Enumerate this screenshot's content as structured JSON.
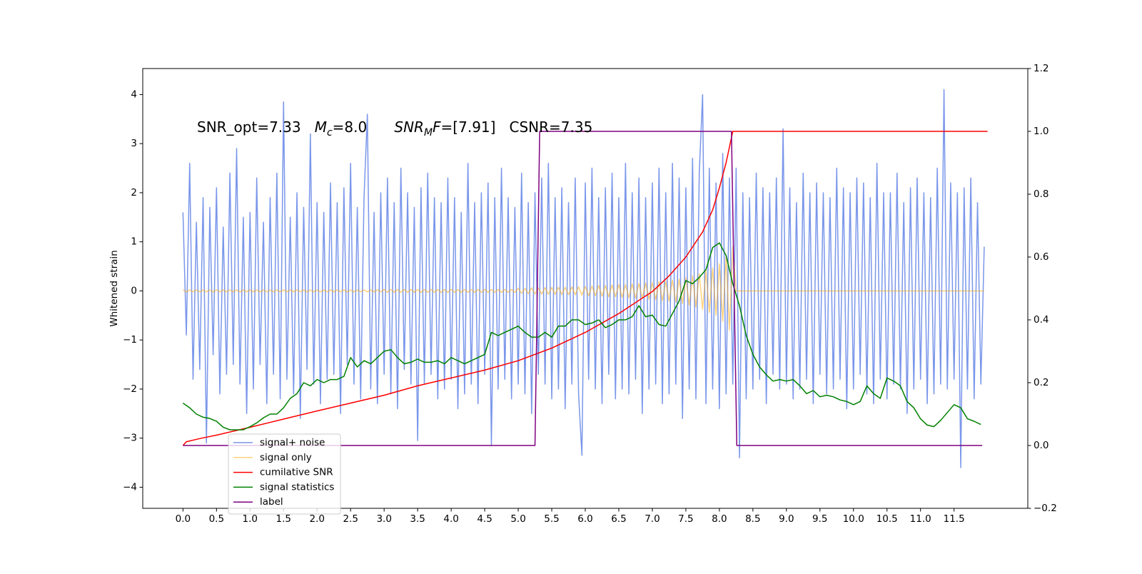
{
  "chart_data": {
    "type": "line",
    "annotation": [
      {
        "text": "SNR_opt=7.33   "
      },
      {
        "text": "M",
        "italic": true
      },
      {
        "text": "c",
        "italic": true,
        "subscript": true
      },
      {
        "text": "=8.0      "
      },
      {
        "text": "SNR",
        "italic": true
      },
      {
        "text": "M",
        "italic": true,
        "subscript": true
      },
      {
        "text": "F",
        "italic": true
      },
      {
        "text": "=[7.91]   CSNR=7.35"
      }
    ],
    "y_label": "Whitened strain",
    "legend": "lower left",
    "xlim": [
      -0.6,
      12.6
    ],
    "ylim": [
      -4.43,
      4.53
    ],
    "y2lim": [
      -0.2,
      1.2
    ],
    "xticks": [
      {
        "value": 0,
        "label": "0.0"
      },
      0.5,
      {
        "value": 1,
        "label": "1.0"
      },
      1.5,
      {
        "value": 2,
        "label": "2.0"
      },
      2.5,
      {
        "value": 3,
        "label": "3.0"
      },
      3.5,
      {
        "value": 4,
        "label": "4.0"
      },
      4.5,
      {
        "value": 5,
        "label": "5.0"
      },
      5.5,
      {
        "value": 6,
        "label": "6.0"
      },
      6.5,
      {
        "value": 7,
        "label": "7.0"
      },
      7.5,
      {
        "value": 8,
        "label": "8.0"
      },
      8.5,
      {
        "value": 9,
        "label": "9.0"
      },
      9.5,
      {
        "value": 10,
        "label": "10.0"
      },
      10.5,
      {
        "value": 11,
        "label": "11.0"
      },
      11.5
    ],
    "yticks": [
      {
        "value": -4,
        "label": "−4"
      },
      {
        "value": -3,
        "label": "−3"
      },
      {
        "value": -2,
        "label": "−2"
      },
      {
        "value": -1,
        "label": "−1"
      },
      0,
      1,
      2,
      3,
      4
    ],
    "y2ticks": [
      {
        "value": -0.2,
        "label": "−0.2"
      },
      {
        "value": 0,
        "label": "0.0"
      },
      0.2,
      0.4,
      0.6,
      0.8,
      {
        "value": 1,
        "label": "1.0"
      },
      1.2
    ],
    "x": [
      0,
      0.05,
      0.1,
      0.15,
      0.2,
      0.25,
      0.3,
      0.35,
      0.4,
      0.45,
      0.5,
      0.55,
      0.6,
      0.65,
      0.7,
      0.75,
      0.8,
      0.85,
      0.9,
      0.95,
      1,
      1.05,
      1.1,
      1.15,
      1.2,
      1.25,
      1.3,
      1.35,
      1.4,
      1.45,
      1.5,
      1.55,
      1.6,
      1.65,
      1.7,
      1.75,
      1.8,
      1.85,
      1.9,
      1.95,
      2,
      2.05,
      2.1,
      2.15,
      2.2,
      2.25,
      2.3,
      2.35,
      2.4,
      2.45,
      2.5,
      2.55,
      2.6,
      2.65,
      2.7,
      2.75,
      2.8,
      2.85,
      2.9,
      2.95,
      3,
      3.05,
      3.1,
      3.15,
      3.2,
      3.25,
      3.3,
      3.35,
      3.4,
      3.45,
      3.5,
      3.55,
      3.6,
      3.65,
      3.7,
      3.75,
      3.8,
      3.85,
      3.9,
      3.95,
      4,
      4.05,
      4.1,
      4.15,
      4.2,
      4.25,
      4.3,
      4.35,
      4.4,
      4.45,
      4.5,
      4.55,
      4.6,
      4.65,
      4.7,
      4.75,
      4.8,
      4.85,
      4.9,
      4.95,
      5,
      5.05,
      5.1,
      5.15,
      5.2,
      5.25,
      5.3,
      5.35,
      5.4,
      5.45,
      5.5,
      5.55,
      5.6,
      5.65,
      5.7,
      5.75,
      5.8,
      5.85,
      5.9,
      5.95,
      6,
      6.05,
      6.1,
      6.15,
      6.2,
      6.25,
      6.3,
      6.35,
      6.4,
      6.45,
      6.5,
      6.55,
      6.6,
      6.65,
      6.7,
      6.75,
      6.8,
      6.85,
      6.9,
      6.95,
      7,
      7.05,
      7.1,
      7.15,
      7.2,
      7.25,
      7.3,
      7.35,
      7.4,
      7.45,
      7.5,
      7.55,
      7.6,
      7.65,
      7.7,
      7.75,
      7.8,
      7.85,
      7.9,
      7.95,
      8,
      8.05,
      8.1,
      8.15,
      8.2,
      8.25,
      8.3,
      8.35,
      8.4,
      8.45,
      8.5,
      8.55,
      8.6,
      8.65,
      8.7,
      8.75,
      8.8,
      8.85,
      8.9,
      8.95,
      9,
      9.05,
      9.1,
      9.15,
      9.2,
      9.25,
      9.3,
      9.35,
      9.4,
      9.45,
      9.5,
      9.55,
      9.6,
      9.65,
      9.7,
      9.75,
      9.8,
      9.85,
      9.9,
      9.95,
      10,
      10.05,
      10.1,
      10.15,
      10.2,
      10.25,
      10.3,
      10.35,
      10.4,
      10.45,
      10.5,
      10.55,
      10.6,
      10.65,
      10.7,
      10.75,
      10.8,
      10.85,
      10.9,
      10.95,
      11,
      11.05,
      11.1,
      11.15,
      11.2,
      11.25,
      11.3,
      11.35,
      11.4,
      11.45,
      11.5,
      11.55,
      11.6,
      11.65,
      11.7,
      11.75,
      11.8,
      11.85,
      11.9,
      11.95
    ],
    "series": [
      {
        "name": "signal+ noise",
        "color": "#4169e1",
        "alpha": 0.7,
        "values": [
          1.6,
          -0.9,
          2.6,
          -1.8,
          1.4,
          -1.6,
          1.9,
          -3.1,
          1.7,
          -1.3,
          2.1,
          -2.1,
          1.3,
          -1.7,
          2.4,
          -1.5,
          2.9,
          -1.9,
          1.5,
          -2.5,
          1.6,
          -2.0,
          2.3,
          -1.5,
          1.4,
          -2.3,
          1.9,
          -1.7,
          2.4,
          -2.2,
          3.85,
          -1.8,
          1.5,
          -2.1,
          2.0,
          -2.6,
          1.7,
          -1.6,
          3.2,
          -1.9,
          1.8,
          -2.3,
          1.6,
          -1.8,
          2.2,
          -1.7,
          1.8,
          -2.5,
          2.1,
          -1.5,
          2.6,
          -1.9,
          1.7,
          -2.2,
          1.9,
          3.6,
          -2.0,
          1.6,
          -2.3,
          2.0,
          -1.7,
          2.3,
          -2.1,
          1.8,
          -2.4,
          2.5,
          -1.6,
          2.0,
          -1.9,
          1.7,
          -3.05,
          2.1,
          -1.9,
          2.4,
          -1.7,
          1.9,
          -2.2,
          1.8,
          -2.0,
          2.3,
          -1.8,
          1.9,
          -2.4,
          1.6,
          -2.1,
          2.6,
          -1.9,
          1.8,
          -2.3,
          2.0,
          -1.7,
          2.2,
          -3.15,
          1.9,
          -2.0,
          2.5,
          -1.8,
          1.9,
          -2.2,
          1.7,
          -1.9,
          2.4,
          -2.1,
          1.8,
          -2.5,
          2.0,
          -1.7,
          2.3,
          -1.9,
          2.6,
          -2.2,
          1.9,
          -2.0,
          2.1,
          -2.4,
          1.8,
          -1.9,
          2.3,
          -2.1,
          -3.35,
          2.2,
          -1.8,
          2.5,
          -2.0,
          1.9,
          -2.3,
          2.1,
          -1.7,
          2.4,
          -2.2,
          1.9,
          -2.0,
          2.6,
          -2.1,
          2.0,
          -1.8,
          2.3,
          -2.5,
          1.9,
          -2.0,
          2.2,
          -1.9,
          2.5,
          -2.3,
          2.0,
          -2.1,
          2.6,
          -1.9,
          2.3,
          -2.6,
          2.1,
          -2.0,
          2.7,
          -2.2,
          2.4,
          4.0,
          -2.3,
          2.5,
          -2.0,
          2.2,
          -2.4,
          2.8,
          -2.1,
          2.3,
          -1.9,
          2.5,
          -3.4,
          2.0,
          -2.2,
          1.9,
          -2.0,
          2.4,
          -1.8,
          2.1,
          -2.3,
          2.0,
          -1.7,
          2.3,
          -2.0,
          3.3,
          -1.9,
          2.1,
          -2.2,
          1.8,
          -2.0,
          2.4,
          -1.8,
          2.0,
          -2.3,
          2.2,
          -1.7,
          2.0,
          -2.1,
          1.9,
          -2.0,
          2.5,
          -1.8,
          2.1,
          -2.4,
          2.0,
          -2.0,
          2.3,
          -1.7,
          2.2,
          -2.1,
          1.9,
          -2.3,
          2.6,
          -1.8,
          2.0,
          -2.2,
          2.0,
          -1.9,
          2.4,
          -2.0,
          1.8,
          -2.5,
          2.1,
          -2.0,
          2.3,
          -1.8,
          2.0,
          -2.3,
          1.9,
          -2.1,
          2.5,
          -1.9,
          4.1,
          -2.0,
          2.2,
          -1.8,
          2.0,
          -3.6,
          2.1,
          -2.0,
          2.3,
          -2.2,
          1.8,
          -1.9,
          0.9
        ]
      },
      {
        "name": "signal only",
        "color": "#ffa500",
        "alpha": 0.5,
        "values": [
          0.02,
          -0.02,
          0.02,
          -0.02,
          0.02,
          -0.02,
          0.02,
          -0.02,
          0.02,
          -0.02,
          0.02,
          -0.02,
          0.02,
          -0.02,
          0.02,
          -0.02,
          0.02,
          -0.02,
          0.02,
          -0.02,
          0.02,
          -0.02,
          0.02,
          -0.02,
          0.02,
          -0.02,
          0.02,
          -0.02,
          0.02,
          -0.02,
          0.02,
          -0.02,
          0.02,
          -0.02,
          0.02,
          -0.02,
          0.02,
          -0.02,
          0.02,
          -0.02,
          0.02,
          -0.02,
          0.02,
          -0.02,
          0.02,
          -0.02,
          0.02,
          -0.02,
          0.02,
          -0.02,
          0.02,
          -0.02,
          0.02,
          -0.02,
          0.02,
          -0.02,
          0.02,
          -0.02,
          0.02,
          -0.02,
          0.03,
          -0.03,
          0.03,
          -0.03,
          0.03,
          -0.03,
          0.03,
          -0.03,
          0.03,
          -0.03,
          0.03,
          -0.03,
          0.03,
          -0.03,
          0.03,
          -0.03,
          0.03,
          -0.03,
          0.03,
          -0.03,
          0.03,
          -0.03,
          0.03,
          -0.03,
          0.03,
          -0.03,
          0.03,
          -0.03,
          0.03,
          -0.03,
          0.03,
          -0.03,
          0.03,
          -0.03,
          0.03,
          -0.03,
          0.03,
          -0.03,
          0.03,
          -0.03,
          0.05,
          -0.05,
          0.05,
          -0.055,
          0.06,
          -0.06,
          0.06,
          -0.065,
          0.065,
          -0.07,
          0.07,
          -0.07,
          0.075,
          -0.075,
          0.075,
          -0.08,
          0.08,
          -0.08,
          0.085,
          -0.09,
          0.09,
          -0.1,
          0.1,
          -0.1,
          0.11,
          -0.11,
          0.11,
          -0.12,
          0.12,
          -0.12,
          0.13,
          -0.13,
          0.13,
          -0.14,
          0.14,
          -0.15,
          0.15,
          -0.15,
          0.16,
          -0.17,
          0.17,
          -0.18,
          0.19,
          -0.2,
          0.2,
          -0.21,
          0.22,
          -0.23,
          0.24,
          -0.26,
          0.27,
          -0.29,
          0.31,
          -0.33,
          0.35,
          -0.38,
          0.41,
          -0.44,
          0.47,
          -0.5,
          0.55,
          -0.62,
          0.7,
          -0.8,
          0.9,
          0,
          0,
          0,
          0,
          0,
          0,
          0,
          0,
          0,
          0,
          0,
          0,
          0,
          0,
          0,
          0,
          0,
          0,
          0,
          0,
          0,
          0,
          0,
          0,
          0,
          0,
          0,
          0,
          0,
          0,
          0,
          0,
          0,
          0,
          0,
          0,
          0,
          0,
          0,
          0,
          0,
          0,
          0,
          0,
          0,
          0,
          0,
          0,
          0,
          0,
          0,
          0,
          0,
          0,
          0,
          0,
          0,
          0,
          0,
          0,
          0,
          0,
          0,
          0,
          0,
          0,
          0,
          0,
          0,
          0,
          0,
          0,
          0,
          0,
          0
        ]
      },
      {
        "name": "cumilative SNR",
        "color": "#ff0000",
        "axis": "y2",
        "x": [
          0,
          0.05,
          0.25,
          0.5,
          1,
          1.5,
          2,
          2.5,
          3,
          3.5,
          4,
          4.5,
          5,
          5.5,
          6,
          6.5,
          7,
          7.25,
          7.5,
          7.75,
          7.9,
          8,
          8.1,
          8.2,
          12
        ],
        "values": [
          0,
          0.012,
          0.022,
          0.033,
          0.058,
          0.084,
          0.11,
          0.135,
          0.16,
          0.19,
          0.215,
          0.24,
          0.27,
          0.31,
          0.36,
          0.42,
          0.49,
          0.54,
          0.6,
          0.68,
          0.75,
          0.82,
          0.9,
          1,
          1
        ]
      },
      {
        "name": "signal statistics",
        "color": "#008000",
        "axis": "y2",
        "x": [
          0,
          0.1,
          0.2,
          0.3,
          0.4,
          0.5,
          0.6,
          0.7,
          0.8,
          0.9,
          1,
          1.1,
          1.2,
          1.3,
          1.4,
          1.5,
          1.6,
          1.7,
          1.8,
          1.9,
          2,
          2.1,
          2.2,
          2.3,
          2.4,
          2.5,
          2.6,
          2.7,
          2.8,
          2.9,
          3,
          3.1,
          3.2,
          3.3,
          3.4,
          3.5,
          3.6,
          3.7,
          3.8,
          3.9,
          4,
          4.1,
          4.2,
          4.3,
          4.4,
          4.5,
          4.6,
          4.7,
          4.8,
          4.9,
          5,
          5.1,
          5.2,
          5.3,
          5.4,
          5.5,
          5.6,
          5.7,
          5.8,
          5.9,
          6,
          6.1,
          6.2,
          6.3,
          6.4,
          6.5,
          6.6,
          6.7,
          6.8,
          6.9,
          7,
          7.1,
          7.2,
          7.3,
          7.4,
          7.5,
          7.6,
          7.7,
          7.8,
          7.9,
          8,
          8.1,
          8.2,
          8.3,
          8.4,
          8.5,
          8.6,
          8.7,
          8.8,
          8.9,
          9,
          9.1,
          9.2,
          9.3,
          9.4,
          9.5,
          9.6,
          9.7,
          9.8,
          9.9,
          10,
          10.1,
          10.2,
          10.3,
          10.4,
          10.5,
          10.6,
          10.7,
          10.8,
          10.9,
          11,
          11.1,
          11.2,
          11.3,
          11.4,
          11.5,
          11.6,
          11.7,
          11.8,
          11.9
        ],
        "values": [
          0.135,
          0.12,
          0.1,
          0.09,
          0.086,
          0.077,
          0.058,
          0.05,
          0.05,
          0.05,
          0.06,
          0.072,
          0.088,
          0.1,
          0.1,
          0.12,
          0.15,
          0.165,
          0.2,
          0.19,
          0.21,
          0.2,
          0.21,
          0.21,
          0.22,
          0.28,
          0.25,
          0.27,
          0.26,
          0.28,
          0.3,
          0.305,
          0.28,
          0.26,
          0.265,
          0.275,
          0.265,
          0.265,
          0.27,
          0.26,
          0.28,
          0.27,
          0.26,
          0.27,
          0.28,
          0.29,
          0.36,
          0.35,
          0.36,
          0.37,
          0.38,
          0.36,
          0.345,
          0.345,
          0.36,
          0.345,
          0.38,
          0.38,
          0.4,
          0.4,
          0.385,
          0.39,
          0.4,
          0.375,
          0.385,
          0.4,
          0.4,
          0.41,
          0.445,
          0.41,
          0.415,
          0.385,
          0.38,
          0.42,
          0.46,
          0.525,
          0.515,
          0.535,
          0.56,
          0.63,
          0.645,
          0.605,
          0.515,
          0.445,
          0.35,
          0.29,
          0.25,
          0.225,
          0.205,
          0.21,
          0.205,
          0.21,
          0.19,
          0.165,
          0.175,
          0.155,
          0.16,
          0.155,
          0.145,
          0.14,
          0.13,
          0.14,
          0.19,
          0.165,
          0.15,
          0.215,
          0.205,
          0.19,
          0.14,
          0.12,
          0.085,
          0.065,
          0.06,
          0.08,
          0.105,
          0.13,
          0.12,
          0.085,
          0.077,
          0.067
        ]
      },
      {
        "name": "label",
        "color": "#800080",
        "axis": "y2",
        "x": [
          0,
          5.25,
          5.32,
          8.18,
          8.26,
          11.92
        ],
        "values": [
          0,
          0,
          1,
          1,
          0,
          0
        ]
      }
    ]
  }
}
